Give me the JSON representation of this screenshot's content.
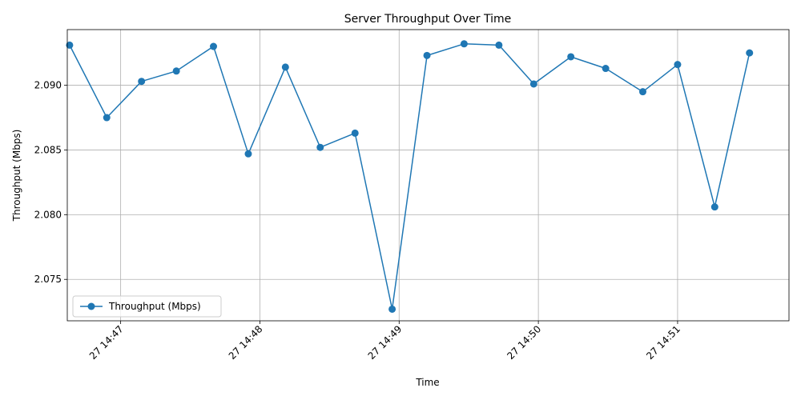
{
  "chart_data": {
    "type": "line",
    "title": "Server Throughput Over Time",
    "xlabel": "Time",
    "ylabel": "Throughput (Mbps)",
    "x_type": "time",
    "xlim": [
      "14:46:37",
      "14:51:48"
    ],
    "ylim": [
      2.0718,
      2.0943
    ],
    "x_ticks": [
      {
        "time": "14:47:00",
        "label": "27 14:47"
      },
      {
        "time": "14:48:00",
        "label": "27 14:48"
      },
      {
        "time": "14:49:00",
        "label": "27 14:49"
      },
      {
        "time": "14:50:00",
        "label": "27 14:50"
      },
      {
        "time": "14:51:00",
        "label": "27 14:51"
      }
    ],
    "y_ticks": [
      {
        "value": 2.075,
        "label": "2.075"
      },
      {
        "value": 2.08,
        "label": "2.080"
      },
      {
        "value": 2.085,
        "label": "2.085"
      },
      {
        "value": 2.09,
        "label": "2.090"
      }
    ],
    "grid": true,
    "legend_position": "lower-left",
    "series": [
      {
        "name": "Throughput (Mbps)",
        "color": "#1f77b4",
        "marker": "circle",
        "points": [
          {
            "x": "14:46:38",
            "y": 2.0931
          },
          {
            "x": "14:46:54",
            "y": 2.0875
          },
          {
            "x": "14:47:09",
            "y": 2.0903
          },
          {
            "x": "14:47:24",
            "y": 2.0911
          },
          {
            "x": "14:47:40",
            "y": 2.093
          },
          {
            "x": "14:47:55",
            "y": 2.0847
          },
          {
            "x": "14:48:11",
            "y": 2.0914
          },
          {
            "x": "14:48:26",
            "y": 2.0852
          },
          {
            "x": "14:48:41",
            "y": 2.0863
          },
          {
            "x": "14:48:57",
            "y": 2.0727
          },
          {
            "x": "14:49:12",
            "y": 2.0923
          },
          {
            "x": "14:49:28",
            "y": 2.0932
          },
          {
            "x": "14:49:43",
            "y": 2.0931
          },
          {
            "x": "14:49:58",
            "y": 2.0901
          },
          {
            "x": "14:50:14",
            "y": 2.0922
          },
          {
            "x": "14:50:29",
            "y": 2.0913
          },
          {
            "x": "14:50:45",
            "y": 2.0895
          },
          {
            "x": "14:51:00",
            "y": 2.0916
          },
          {
            "x": "14:51:16",
            "y": 2.0806
          },
          {
            "x": "14:51:31",
            "y": 2.0925
          }
        ]
      }
    ]
  }
}
